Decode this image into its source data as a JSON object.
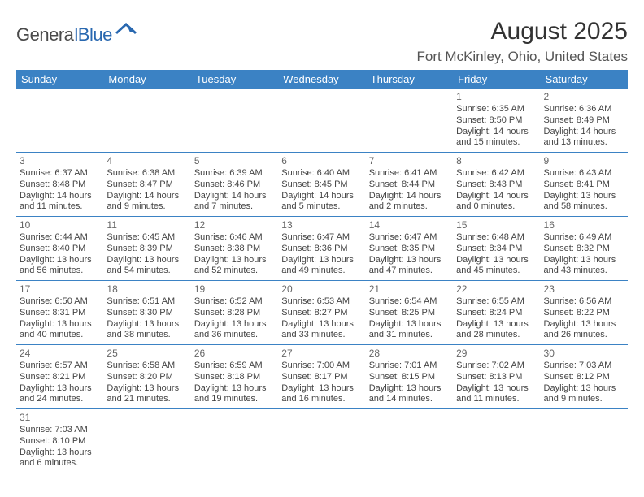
{
  "logo": {
    "part1": "Genera",
    "part2": "lBlue"
  },
  "title": "August 2025",
  "location": "Fort McKinley, Ohio, United States",
  "colors": {
    "header_bg": "#3b82c4",
    "header_text": "#ffffff",
    "cell_border": "#3b82c4",
    "text": "#444444",
    "logo_gray": "#4a4a4a",
    "logo_blue": "#2968b0"
  },
  "dayNames": [
    "Sunday",
    "Monday",
    "Tuesday",
    "Wednesday",
    "Thursday",
    "Friday",
    "Saturday"
  ],
  "weeks": [
    [
      null,
      null,
      null,
      null,
      null,
      {
        "d": "1",
        "sr": "6:35 AM",
        "ss": "8:50 PM",
        "dl1": "14 hours",
        "dl2": "and 15 minutes."
      },
      {
        "d": "2",
        "sr": "6:36 AM",
        "ss": "8:49 PM",
        "dl1": "14 hours",
        "dl2": "and 13 minutes."
      }
    ],
    [
      {
        "d": "3",
        "sr": "6:37 AM",
        "ss": "8:48 PM",
        "dl1": "14 hours",
        "dl2": "and 11 minutes."
      },
      {
        "d": "4",
        "sr": "6:38 AM",
        "ss": "8:47 PM",
        "dl1": "14 hours",
        "dl2": "and 9 minutes."
      },
      {
        "d": "5",
        "sr": "6:39 AM",
        "ss": "8:46 PM",
        "dl1": "14 hours",
        "dl2": "and 7 minutes."
      },
      {
        "d": "6",
        "sr": "6:40 AM",
        "ss": "8:45 PM",
        "dl1": "14 hours",
        "dl2": "and 5 minutes."
      },
      {
        "d": "7",
        "sr": "6:41 AM",
        "ss": "8:44 PM",
        "dl1": "14 hours",
        "dl2": "and 2 minutes."
      },
      {
        "d": "8",
        "sr": "6:42 AM",
        "ss": "8:43 PM",
        "dl1": "14 hours",
        "dl2": "and 0 minutes."
      },
      {
        "d": "9",
        "sr": "6:43 AM",
        "ss": "8:41 PM",
        "dl1": "13 hours",
        "dl2": "and 58 minutes."
      }
    ],
    [
      {
        "d": "10",
        "sr": "6:44 AM",
        "ss": "8:40 PM",
        "dl1": "13 hours",
        "dl2": "and 56 minutes."
      },
      {
        "d": "11",
        "sr": "6:45 AM",
        "ss": "8:39 PM",
        "dl1": "13 hours",
        "dl2": "and 54 minutes."
      },
      {
        "d": "12",
        "sr": "6:46 AM",
        "ss": "8:38 PM",
        "dl1": "13 hours",
        "dl2": "and 52 minutes."
      },
      {
        "d": "13",
        "sr": "6:47 AM",
        "ss": "8:36 PM",
        "dl1": "13 hours",
        "dl2": "and 49 minutes."
      },
      {
        "d": "14",
        "sr": "6:47 AM",
        "ss": "8:35 PM",
        "dl1": "13 hours",
        "dl2": "and 47 minutes."
      },
      {
        "d": "15",
        "sr": "6:48 AM",
        "ss": "8:34 PM",
        "dl1": "13 hours",
        "dl2": "and 45 minutes."
      },
      {
        "d": "16",
        "sr": "6:49 AM",
        "ss": "8:32 PM",
        "dl1": "13 hours",
        "dl2": "and 43 minutes."
      }
    ],
    [
      {
        "d": "17",
        "sr": "6:50 AM",
        "ss": "8:31 PM",
        "dl1": "13 hours",
        "dl2": "and 40 minutes."
      },
      {
        "d": "18",
        "sr": "6:51 AM",
        "ss": "8:30 PM",
        "dl1": "13 hours",
        "dl2": "and 38 minutes."
      },
      {
        "d": "19",
        "sr": "6:52 AM",
        "ss": "8:28 PM",
        "dl1": "13 hours",
        "dl2": "and 36 minutes."
      },
      {
        "d": "20",
        "sr": "6:53 AM",
        "ss": "8:27 PM",
        "dl1": "13 hours",
        "dl2": "and 33 minutes."
      },
      {
        "d": "21",
        "sr": "6:54 AM",
        "ss": "8:25 PM",
        "dl1": "13 hours",
        "dl2": "and 31 minutes."
      },
      {
        "d": "22",
        "sr": "6:55 AM",
        "ss": "8:24 PM",
        "dl1": "13 hours",
        "dl2": "and 28 minutes."
      },
      {
        "d": "23",
        "sr": "6:56 AM",
        "ss": "8:22 PM",
        "dl1": "13 hours",
        "dl2": "and 26 minutes."
      }
    ],
    [
      {
        "d": "24",
        "sr": "6:57 AM",
        "ss": "8:21 PM",
        "dl1": "13 hours",
        "dl2": "and 24 minutes."
      },
      {
        "d": "25",
        "sr": "6:58 AM",
        "ss": "8:20 PM",
        "dl1": "13 hours",
        "dl2": "and 21 minutes."
      },
      {
        "d": "26",
        "sr": "6:59 AM",
        "ss": "8:18 PM",
        "dl1": "13 hours",
        "dl2": "and 19 minutes."
      },
      {
        "d": "27",
        "sr": "7:00 AM",
        "ss": "8:17 PM",
        "dl1": "13 hours",
        "dl2": "and 16 minutes."
      },
      {
        "d": "28",
        "sr": "7:01 AM",
        "ss": "8:15 PM",
        "dl1": "13 hours",
        "dl2": "and 14 minutes."
      },
      {
        "d": "29",
        "sr": "7:02 AM",
        "ss": "8:13 PM",
        "dl1": "13 hours",
        "dl2": "and 11 minutes."
      },
      {
        "d": "30",
        "sr": "7:03 AM",
        "ss": "8:12 PM",
        "dl1": "13 hours",
        "dl2": "and 9 minutes."
      }
    ],
    [
      {
        "d": "31",
        "sr": "7:03 AM",
        "ss": "8:10 PM",
        "dl1": "13 hours",
        "dl2": "and 6 minutes."
      },
      null,
      null,
      null,
      null,
      null,
      null
    ]
  ],
  "labels": {
    "sunrise": "Sunrise:",
    "sunset": "Sunset:",
    "daylight": "Daylight:"
  }
}
